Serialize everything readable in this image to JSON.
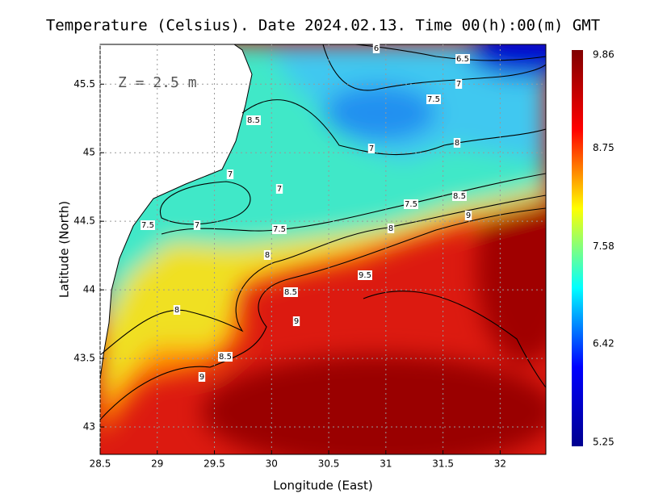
{
  "chart_data": {
    "type": "contour-map",
    "title": "Temperature (Celsius). Date 2024.02.13. Time 00(h):00(m) GMT",
    "annotation": "Z = 2.5 m",
    "x_label": "Longitude (East)",
    "y_label": "Latitude (North)",
    "xlim": [
      28.5,
      32.4
    ],
    "ylim": [
      42.8,
      45.79
    ],
    "xticks": [
      28.5,
      29,
      29.5,
      30,
      30.5,
      31,
      31.5,
      32
    ],
    "yticks": [
      43,
      43.5,
      44,
      44.5,
      45,
      45.5
    ],
    "grid": true,
    "colorbar": {
      "lim": [
        5.25,
        9.86
      ],
      "ticks": [
        5.25,
        6.42,
        7.58,
        8.75,
        9.86
      ],
      "colors": [
        "#00008f",
        "#0000ff",
        "#00ffff",
        "#ffff00",
        "#ff0000",
        "#800000"
      ]
    },
    "contour_labels": [
      "6",
      "6.5",
      "7",
      "7.5",
      "8.5",
      "7",
      "8",
      "7",
      "7",
      "7.5",
      "8.5",
      "9",
      "7.5",
      "7",
      "7.5",
      "8",
      "8",
      "9.5",
      "8.5",
      "8",
      "9",
      "8.5",
      "9"
    ]
  }
}
